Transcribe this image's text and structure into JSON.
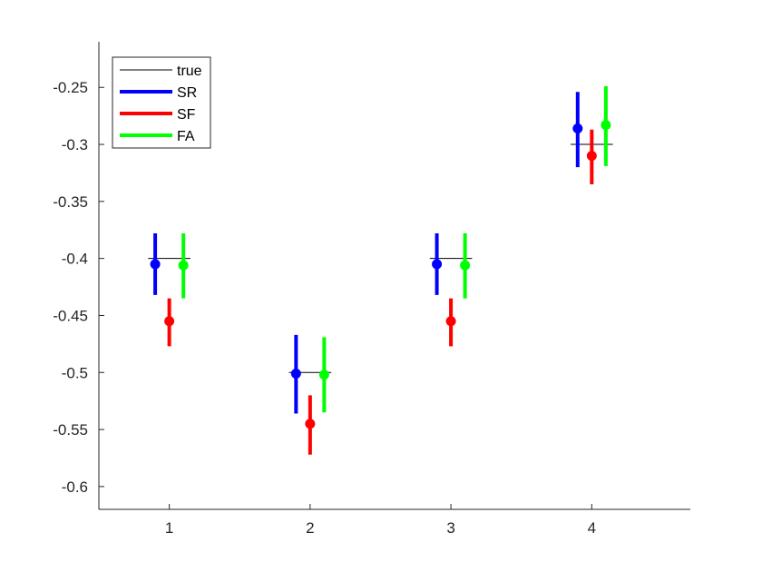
{
  "chart_data": {
    "type": "errorbar",
    "title": "",
    "xlabel": "",
    "ylabel": "",
    "xlim": [
      0.5,
      4.7
    ],
    "ylim": [
      -0.62,
      -0.21
    ],
    "xticks": [
      1,
      2,
      3,
      4
    ],
    "xtick_labels": [
      "1",
      "2",
      "3",
      "4"
    ],
    "yticks": [
      -0.6,
      -0.55,
      -0.5,
      -0.45,
      -0.4,
      -0.35,
      -0.3,
      -0.25
    ],
    "ytick_labels": [
      "-0.6",
      "-0.55",
      "-0.5",
      "-0.45",
      "-0.4",
      "-0.35",
      "-0.3",
      "-0.25"
    ],
    "grid": false,
    "legend_position": "top-left",
    "true_values": {
      "name": "true",
      "color": "#000000",
      "x": [
        1,
        2,
        3,
        4
      ],
      "values": [
        -0.4,
        -0.5,
        -0.4,
        -0.3
      ]
    },
    "series": [
      {
        "name": "SR",
        "color": "#0000ff",
        "x": [
          0.9,
          1.9,
          2.9,
          3.9
        ],
        "values": [
          -0.405,
          -0.501,
          -0.405,
          -0.286
        ],
        "lower": [
          -0.432,
          -0.536,
          -0.432,
          -0.32
        ],
        "upper": [
          -0.378,
          -0.467,
          -0.378,
          -0.254
        ]
      },
      {
        "name": "SF",
        "color": "#ff0000",
        "x": [
          1.0,
          2.0,
          3.0,
          4.0
        ],
        "values": [
          -0.455,
          -0.545,
          -0.455,
          -0.31
        ],
        "lower": [
          -0.477,
          -0.572,
          -0.477,
          -0.335
        ],
        "upper": [
          -0.435,
          -0.52,
          -0.435,
          -0.287
        ]
      },
      {
        "name": "FA",
        "color": "#00ff00",
        "x": [
          1.1,
          2.1,
          3.1,
          4.1
        ],
        "values": [
          -0.406,
          -0.502,
          -0.406,
          -0.283
        ],
        "lower": [
          -0.435,
          -0.535,
          -0.435,
          -0.319
        ],
        "upper": [
          -0.378,
          -0.469,
          -0.378,
          -0.249
        ]
      }
    ]
  }
}
